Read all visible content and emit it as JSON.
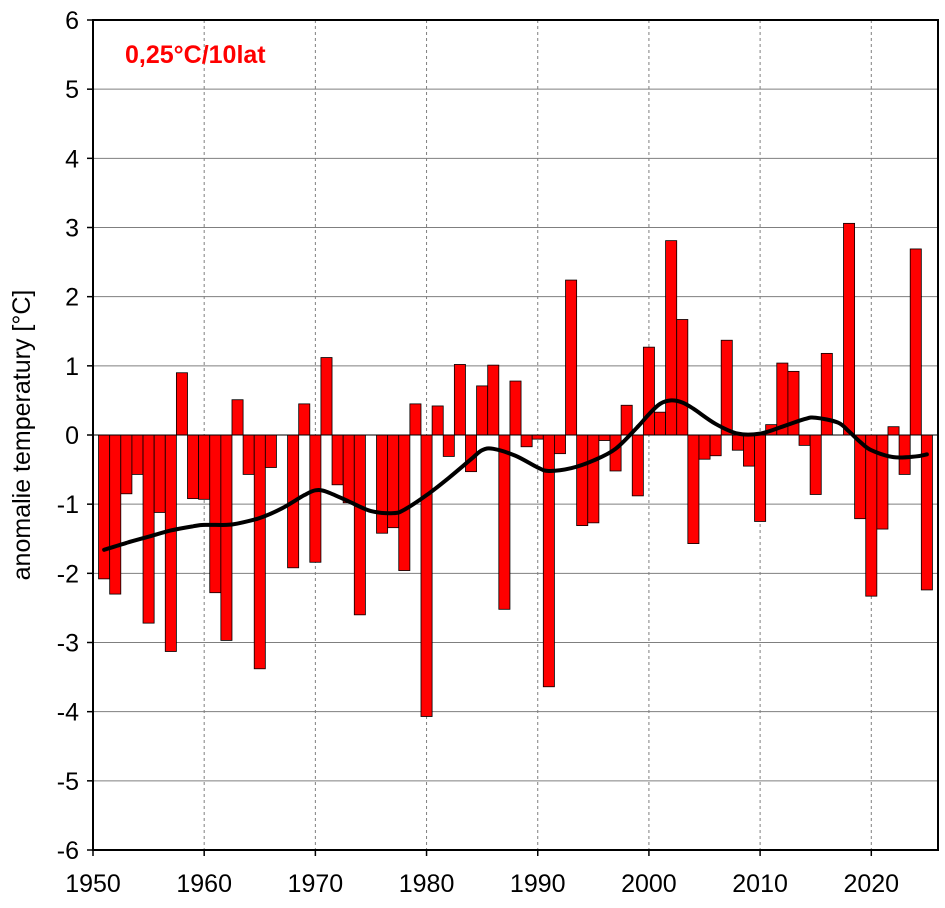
{
  "chart_data": {
    "type": "bar",
    "title": "",
    "annotation": "0,25°C/10lat",
    "xlabel": "",
    "ylabel": "anomalie temperatury [°C]",
    "xlim": [
      1950,
      2026
    ],
    "ylim": [
      -6,
      6
    ],
    "xticks": [
      1950,
      1960,
      1970,
      1980,
      1990,
      2000,
      2010,
      2020
    ],
    "yticks": [
      -6,
      -5,
      -4,
      -3,
      -2,
      -1,
      0,
      1,
      2,
      3,
      4,
      5,
      6
    ],
    "grid": true,
    "legend": "none",
    "colors": {
      "bar": "#ff0000",
      "bar_edge": "#000000",
      "trend": "#000000",
      "annotation": "#ff0000",
      "grid": "#7f7f7f"
    },
    "series": [
      {
        "type": "bar",
        "x": [
          1951,
          1952,
          1953,
          1954,
          1955,
          1956,
          1957,
          1958,
          1959,
          1960,
          1961,
          1962,
          1963,
          1964,
          1965,
          1966,
          1967,
          1968,
          1969,
          1970,
          1971,
          1972,
          1973,
          1974,
          1975,
          1976,
          1977,
          1978,
          1979,
          1980,
          1981,
          1982,
          1983,
          1984,
          1985,
          1986,
          1987,
          1988,
          1989,
          1990,
          1991,
          1992,
          1993,
          1994,
          1995,
          1996,
          1997,
          1998,
          1999,
          2000,
          2001,
          2002,
          2003,
          2004,
          2005,
          2006,
          2007,
          2008,
          2009,
          2010,
          2011,
          2012,
          2013,
          2014,
          2015,
          2016,
          2017,
          2018,
          2019,
          2020,
          2021,
          2022,
          2023,
          2024,
          2025
        ],
        "values": [
          -2.08,
          -2.3,
          -0.85,
          -0.57,
          -2.72,
          -1.12,
          -3.13,
          0.9,
          -0.92,
          -0.93,
          -2.28,
          -2.97,
          0.51,
          -0.57,
          -3.38,
          -0.47,
          0.0,
          -1.92,
          0.45,
          -1.84,
          1.12,
          -0.72,
          -0.98,
          -2.6,
          0.0,
          -1.42,
          -1.34,
          -1.96,
          0.45,
          -4.07,
          0.42,
          -0.31,
          1.02,
          -0.53,
          0.71,
          1.01,
          -2.52,
          0.78,
          -0.17,
          -0.06,
          -3.64,
          -0.27,
          2.24,
          -1.31,
          -1.27,
          -0.08,
          -0.52,
          0.43,
          -0.88,
          1.27,
          0.33,
          2.81,
          1.67,
          -1.57,
          -0.35,
          -0.3,
          1.37,
          -0.22,
          -0.45,
          -1.25,
          0.15,
          1.04,
          0.92,
          -0.15,
          -0.86,
          1.18,
          0.0,
          3.06,
          -1.21,
          -2.33,
          -1.36,
          0.12,
          -0.57,
          2.69,
          -2.24
        ]
      },
      {
        "type": "line",
        "name": "",
        "x": [
          1951,
          1953,
          1955,
          1957,
          1959,
          1960,
          1962,
          1963,
          1965,
          1967,
          1969,
          1970,
          1971,
          1973,
          1975,
          1977,
          1978,
          1980,
          1982,
          1984,
          1985,
          1986,
          1988,
          1990,
          1991,
          1993,
          1995,
          1997,
          1999,
          2000,
          2001,
          2002,
          2003,
          2004,
          2006,
          2008,
          2010,
          2012,
          2014,
          2015,
          2017,
          2018,
          2019,
          2020,
          2022,
          2024,
          2025
        ],
        "values": [
          -1.66,
          -1.56,
          -1.47,
          -1.38,
          -1.32,
          -1.3,
          -1.3,
          -1.28,
          -1.2,
          -1.06,
          -0.87,
          -0.8,
          -0.82,
          -0.96,
          -1.1,
          -1.13,
          -1.08,
          -0.87,
          -0.62,
          -0.35,
          -0.22,
          -0.2,
          -0.3,
          -0.47,
          -0.52,
          -0.48,
          -0.37,
          -0.2,
          0.12,
          0.3,
          0.45,
          0.5,
          0.47,
          0.38,
          0.16,
          0.02,
          0.02,
          0.12,
          0.23,
          0.25,
          0.18,
          0.05,
          -0.1,
          -0.22,
          -0.32,
          -0.31,
          -0.28
        ]
      }
    ]
  }
}
